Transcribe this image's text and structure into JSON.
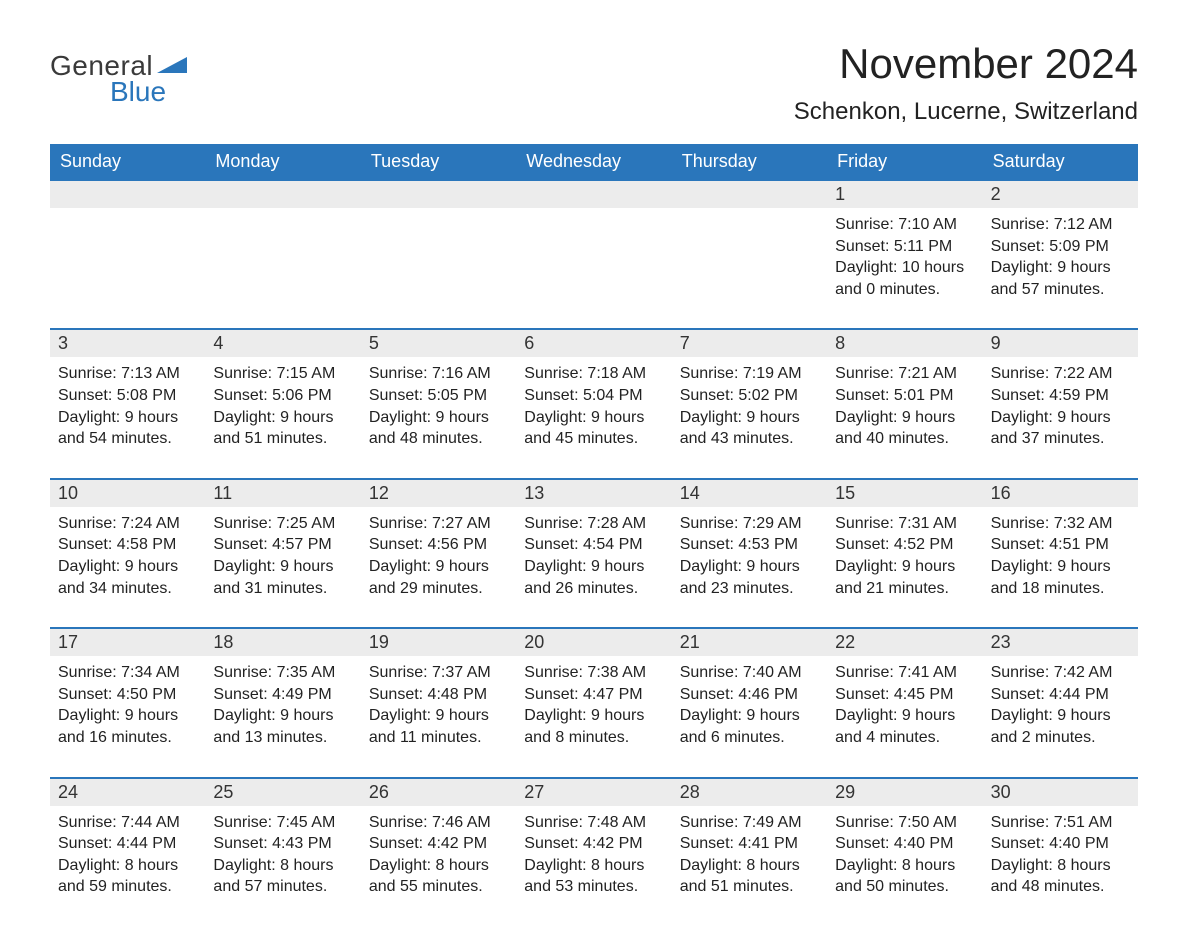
{
  "logo": {
    "word1": "General",
    "word2": "Blue",
    "tri_color": "#2a76bb"
  },
  "title": "November 2024",
  "subtitle": "Schenkon, Lucerne, Switzerland",
  "colors": {
    "header_bg": "#2a76bb",
    "header_text": "#ffffff",
    "daynum_bg": "#ececec",
    "week_border": "#2a76bb",
    "body_text": "#222222",
    "page_bg": "#ffffff"
  },
  "weekdays": [
    "Sunday",
    "Monday",
    "Tuesday",
    "Wednesday",
    "Thursday",
    "Friday",
    "Saturday"
  ],
  "weeks": [
    [
      null,
      null,
      null,
      null,
      null,
      {
        "d": "1",
        "sunrise": "Sunrise: 7:10 AM",
        "sunset": "Sunset: 5:11 PM",
        "dl1": "Daylight: 10 hours",
        "dl2": "and 0 minutes."
      },
      {
        "d": "2",
        "sunrise": "Sunrise: 7:12 AM",
        "sunset": "Sunset: 5:09 PM",
        "dl1": "Daylight: 9 hours",
        "dl2": "and 57 minutes."
      }
    ],
    [
      {
        "d": "3",
        "sunrise": "Sunrise: 7:13 AM",
        "sunset": "Sunset: 5:08 PM",
        "dl1": "Daylight: 9 hours",
        "dl2": "and 54 minutes."
      },
      {
        "d": "4",
        "sunrise": "Sunrise: 7:15 AM",
        "sunset": "Sunset: 5:06 PM",
        "dl1": "Daylight: 9 hours",
        "dl2": "and 51 minutes."
      },
      {
        "d": "5",
        "sunrise": "Sunrise: 7:16 AM",
        "sunset": "Sunset: 5:05 PM",
        "dl1": "Daylight: 9 hours",
        "dl2": "and 48 minutes."
      },
      {
        "d": "6",
        "sunrise": "Sunrise: 7:18 AM",
        "sunset": "Sunset: 5:04 PM",
        "dl1": "Daylight: 9 hours",
        "dl2": "and 45 minutes."
      },
      {
        "d": "7",
        "sunrise": "Sunrise: 7:19 AM",
        "sunset": "Sunset: 5:02 PM",
        "dl1": "Daylight: 9 hours",
        "dl2": "and 43 minutes."
      },
      {
        "d": "8",
        "sunrise": "Sunrise: 7:21 AM",
        "sunset": "Sunset: 5:01 PM",
        "dl1": "Daylight: 9 hours",
        "dl2": "and 40 minutes."
      },
      {
        "d": "9",
        "sunrise": "Sunrise: 7:22 AM",
        "sunset": "Sunset: 4:59 PM",
        "dl1": "Daylight: 9 hours",
        "dl2": "and 37 minutes."
      }
    ],
    [
      {
        "d": "10",
        "sunrise": "Sunrise: 7:24 AM",
        "sunset": "Sunset: 4:58 PM",
        "dl1": "Daylight: 9 hours",
        "dl2": "and 34 minutes."
      },
      {
        "d": "11",
        "sunrise": "Sunrise: 7:25 AM",
        "sunset": "Sunset: 4:57 PM",
        "dl1": "Daylight: 9 hours",
        "dl2": "and 31 minutes."
      },
      {
        "d": "12",
        "sunrise": "Sunrise: 7:27 AM",
        "sunset": "Sunset: 4:56 PM",
        "dl1": "Daylight: 9 hours",
        "dl2": "and 29 minutes."
      },
      {
        "d": "13",
        "sunrise": "Sunrise: 7:28 AM",
        "sunset": "Sunset: 4:54 PM",
        "dl1": "Daylight: 9 hours",
        "dl2": "and 26 minutes."
      },
      {
        "d": "14",
        "sunrise": "Sunrise: 7:29 AM",
        "sunset": "Sunset: 4:53 PM",
        "dl1": "Daylight: 9 hours",
        "dl2": "and 23 minutes."
      },
      {
        "d": "15",
        "sunrise": "Sunrise: 7:31 AM",
        "sunset": "Sunset: 4:52 PM",
        "dl1": "Daylight: 9 hours",
        "dl2": "and 21 minutes."
      },
      {
        "d": "16",
        "sunrise": "Sunrise: 7:32 AM",
        "sunset": "Sunset: 4:51 PM",
        "dl1": "Daylight: 9 hours",
        "dl2": "and 18 minutes."
      }
    ],
    [
      {
        "d": "17",
        "sunrise": "Sunrise: 7:34 AM",
        "sunset": "Sunset: 4:50 PM",
        "dl1": "Daylight: 9 hours",
        "dl2": "and 16 minutes."
      },
      {
        "d": "18",
        "sunrise": "Sunrise: 7:35 AM",
        "sunset": "Sunset: 4:49 PM",
        "dl1": "Daylight: 9 hours",
        "dl2": "and 13 minutes."
      },
      {
        "d": "19",
        "sunrise": "Sunrise: 7:37 AM",
        "sunset": "Sunset: 4:48 PM",
        "dl1": "Daylight: 9 hours",
        "dl2": "and 11 minutes."
      },
      {
        "d": "20",
        "sunrise": "Sunrise: 7:38 AM",
        "sunset": "Sunset: 4:47 PM",
        "dl1": "Daylight: 9 hours",
        "dl2": "and 8 minutes."
      },
      {
        "d": "21",
        "sunrise": "Sunrise: 7:40 AM",
        "sunset": "Sunset: 4:46 PM",
        "dl1": "Daylight: 9 hours",
        "dl2": "and 6 minutes."
      },
      {
        "d": "22",
        "sunrise": "Sunrise: 7:41 AM",
        "sunset": "Sunset: 4:45 PM",
        "dl1": "Daylight: 9 hours",
        "dl2": "and 4 minutes."
      },
      {
        "d": "23",
        "sunrise": "Sunrise: 7:42 AM",
        "sunset": "Sunset: 4:44 PM",
        "dl1": "Daylight: 9 hours",
        "dl2": "and 2 minutes."
      }
    ],
    [
      {
        "d": "24",
        "sunrise": "Sunrise: 7:44 AM",
        "sunset": "Sunset: 4:44 PM",
        "dl1": "Daylight: 8 hours",
        "dl2": "and 59 minutes."
      },
      {
        "d": "25",
        "sunrise": "Sunrise: 7:45 AM",
        "sunset": "Sunset: 4:43 PM",
        "dl1": "Daylight: 8 hours",
        "dl2": "and 57 minutes."
      },
      {
        "d": "26",
        "sunrise": "Sunrise: 7:46 AM",
        "sunset": "Sunset: 4:42 PM",
        "dl1": "Daylight: 8 hours",
        "dl2": "and 55 minutes."
      },
      {
        "d": "27",
        "sunrise": "Sunrise: 7:48 AM",
        "sunset": "Sunset: 4:42 PM",
        "dl1": "Daylight: 8 hours",
        "dl2": "and 53 minutes."
      },
      {
        "d": "28",
        "sunrise": "Sunrise: 7:49 AM",
        "sunset": "Sunset: 4:41 PM",
        "dl1": "Daylight: 8 hours",
        "dl2": "and 51 minutes."
      },
      {
        "d": "29",
        "sunrise": "Sunrise: 7:50 AM",
        "sunset": "Sunset: 4:40 PM",
        "dl1": "Daylight: 8 hours",
        "dl2": "and 50 minutes."
      },
      {
        "d": "30",
        "sunrise": "Sunrise: 7:51 AM",
        "sunset": "Sunset: 4:40 PM",
        "dl1": "Daylight: 8 hours",
        "dl2": "and 48 minutes."
      }
    ]
  ]
}
